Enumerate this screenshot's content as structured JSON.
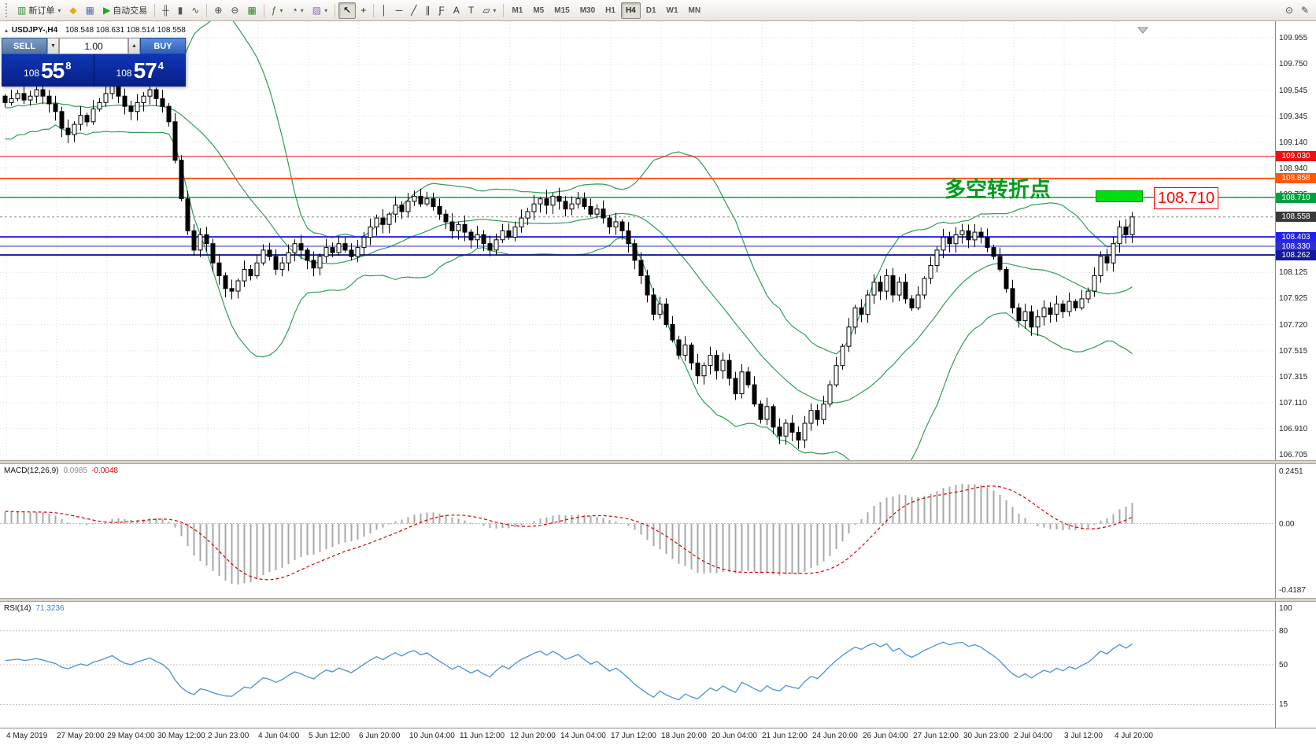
{
  "toolbar": {
    "groups": [
      {
        "name": "trade",
        "items": [
          {
            "name": "new-order-button",
            "icon": "chart-plus-icon",
            "glyph": "▥",
            "color": "#3c8c3c",
            "label": "新订单",
            "caret": true
          },
          {
            "name": "metaeditor-button",
            "icon": "diamond-icon",
            "glyph": "◆",
            "color": "#e6a817"
          },
          {
            "name": "chart-profile-button",
            "icon": "screen-icon",
            "glyph": "▦",
            "color": "#4878b8"
          },
          {
            "name": "autotrading-button",
            "icon": "play-icon",
            "glyph": "▶",
            "color": "#18a818",
            "label": "自动交易"
          }
        ]
      },
      {
        "name": "chart-type",
        "items": [
          {
            "name": "bar-chart-button",
            "icon": "ohlc-bars-icon",
            "glyph": "╫",
            "color": "#555"
          },
          {
            "name": "candlestick-button",
            "icon": "candlestick-icon",
            "glyph": "▮",
            "color": "#555"
          },
          {
            "name": "line-chart-button",
            "icon": "line-chart-icon",
            "glyph": "∿",
            "color": "#555"
          }
        ]
      },
      {
        "name": "zoom",
        "items": [
          {
            "name": "zoom-in-button",
            "icon": "zoom-in-icon",
            "glyph": "⊕",
            "color": "#444"
          },
          {
            "name": "zoom-out-button",
            "icon": "zoom-out-icon",
            "glyph": "⊖",
            "color": "#444"
          },
          {
            "name": "tile-windows-button",
            "icon": "tile-grid-icon",
            "glyph": "▦",
            "color": "#2e8b2e"
          }
        ]
      },
      {
        "name": "manage",
        "items": [
          {
            "name": "indicators-button",
            "icon": "indicator-icon",
            "glyph": "ƒ",
            "color": "#2e6f2e",
            "caret": true
          },
          {
            "name": "periods-button",
            "icon": "clock-icon",
            "glyph": "◔",
            "color": "#444",
            "caret": true
          },
          {
            "name": "templates-button",
            "icon": "picture-icon",
            "glyph": "▨",
            "color": "#8a6ab0",
            "caret": true
          }
        ]
      },
      {
        "name": "cursor",
        "items": [
          {
            "name": "cursor-button",
            "icon": "arrow-cursor-icon",
            "glyph": "↖",
            "color": "#222",
            "active": true
          },
          {
            "name": "crosshair-button",
            "icon": "crosshair-icon",
            "glyph": "+",
            "color": "#222"
          }
        ]
      },
      {
        "name": "objects",
        "items": [
          {
            "name": "vertical-line-button",
            "icon": "vline-icon",
            "glyph": "│",
            "color": "#333"
          },
          {
            "name": "horizontal-line-button",
            "icon": "hline-icon",
            "glyph": "─",
            "color": "#333"
          },
          {
            "name": "trendline-button",
            "icon": "trendline-icon",
            "glyph": "╱",
            "color": "#333"
          },
          {
            "name": "channel-button",
            "icon": "channel-icon",
            "glyph": "∥",
            "color": "#333"
          },
          {
            "name": "fibonacci-button",
            "icon": "fibonacci-icon",
            "glyph": "Ƒ",
            "color": "#333"
          },
          {
            "name": "text-button",
            "icon": "text-icon",
            "glyph": "A",
            "color": "#333"
          },
          {
            "name": "text-label-button",
            "icon": "text-label-icon",
            "glyph": "T",
            "color": "#333"
          },
          {
            "name": "shapes-button",
            "icon": "shapes-icon",
            "glyph": "▱",
            "color": "#333",
            "caret": true
          }
        ]
      }
    ],
    "timeframes": {
      "items": [
        "M1",
        "M5",
        "M15",
        "M30",
        "H1",
        "H4",
        "D1",
        "W1",
        "MN"
      ],
      "active": "H4"
    },
    "right_items": [
      {
        "name": "data-window-button",
        "icon": "magnifier-doc-icon",
        "glyph": "⊙",
        "color": "#444"
      },
      {
        "name": "quick-edit-button",
        "icon": "pencil-icon",
        "glyph": "✎",
        "color": "#444"
      }
    ]
  },
  "one_click": {
    "sell_label": "SELL",
    "buy_label": "BUY",
    "volume": "1.00",
    "sell_price": {
      "pre": "108",
      "big": "55",
      "sup": "8"
    },
    "buy_price": {
      "pre": "108",
      "big": "57",
      "sup": "4"
    }
  },
  "chart": {
    "symbol_title": "USDJPY-,H4",
    "ohlc_text": "108.548 108.631 108.514 108.558",
    "annotation": {
      "text": "多空转折点",
      "price_label": "108.710"
    },
    "current": {
      "price": 108.558,
      "label": "108.558",
      "tag_color": "#3a3a3a"
    },
    "levels": [
      {
        "price": 109.03,
        "label": "109.030",
        "color": "#e81212",
        "width": 1,
        "tag_color": "#e81212"
      },
      {
        "price": 108.858,
        "label": "108.858",
        "color": "#ff5a00",
        "width": 2,
        "tag_color": "#ff5a00"
      },
      {
        "price": 108.71,
        "label": "108.710",
        "color": "#00a341",
        "width": 1.5,
        "tag_color": "#00a341"
      },
      {
        "price": 108.403,
        "label": "108.403",
        "color": "#2222ee",
        "width": 2,
        "tag_color": "#2222ee"
      },
      {
        "price": 108.33,
        "label": "108.330",
        "color": "#2f2fd0",
        "width": 1,
        "tag_color": "#2f2fd0"
      },
      {
        "price": 108.262,
        "label": "108.262",
        "color": "#141a9e",
        "width": 2,
        "tag_color": "#141a9e"
      }
    ],
    "price_axis": {
      "min": 106.705,
      "max": 109.955,
      "ticks": [
        109.955,
        109.75,
        109.545,
        109.345,
        109.14,
        108.94,
        108.735,
        108.125,
        107.925,
        107.72,
        107.515,
        107.315,
        107.11,
        106.91,
        106.705
      ]
    },
    "time_axis": [
      "4 May 2019",
      "27 May 20:00",
      "29 May 04:00",
      "30 May 12:00",
      "2 Jun 23:00",
      "4 Jun 04:00",
      "5 Jun 12:00",
      "6 Jun 20:00",
      "10 Jun 04:00",
      "11 Jun 12:00",
      "12 Jun 20:00",
      "14 Jun 04:00",
      "17 Jun 12:00",
      "18 Jun 20:00",
      "20 Jun 04:00",
      "21 Jun 12:00",
      "24 Jun 20:00",
      "26 Jun 04:00",
      "27 Jun 12:00",
      "30 Jun 23:00",
      "2 Jul 04:00",
      "3 Jul 12:00",
      "4 Jul 20:00"
    ]
  },
  "chart_data": {
    "type": "candlestick",
    "symbol": "USDJPY-",
    "timeframe": "H4",
    "price_range": [
      106.705,
      109.955
    ],
    "indicators": {
      "bollinger": "20,2",
      "macd": "12,26,9",
      "rsi": "14"
    },
    "pre": [
      109.1,
      109.45,
      109.2,
      109.55,
      109.25,
      109.5,
      109.3,
      109.58,
      109.22,
      109.48,
      109.28,
      109.55,
      109.32,
      109.52,
      109.26,
      109.5,
      109.35,
      109.55,
      109.4,
      109.48
    ],
    "closes": [
      109.45,
      109.48,
      109.52,
      109.47,
      109.5,
      109.55,
      109.5,
      109.44,
      109.38,
      109.25,
      109.2,
      109.28,
      109.35,
      109.3,
      109.4,
      109.45,
      109.52,
      109.6,
      109.5,
      109.42,
      109.38,
      109.45,
      109.5,
      109.55,
      109.48,
      109.42,
      109.3,
      109.0,
      108.7,
      108.45,
      108.3,
      108.42,
      108.35,
      108.2,
      108.1,
      108.0,
      107.98,
      108.06,
      108.15,
      108.1,
      108.2,
      108.3,
      108.25,
      108.15,
      108.2,
      108.28,
      108.35,
      108.3,
      108.22,
      108.16,
      108.25,
      108.32,
      108.28,
      108.35,
      108.3,
      108.25,
      108.32,
      108.4,
      108.48,
      108.55,
      108.5,
      108.58,
      108.65,
      108.6,
      108.68,
      108.72,
      108.66,
      108.7,
      108.64,
      108.58,
      108.52,
      108.45,
      108.5,
      108.44,
      108.38,
      108.42,
      108.35,
      108.3,
      108.38,
      108.45,
      108.4,
      108.48,
      108.55,
      108.6,
      108.66,
      108.7,
      108.65,
      108.72,
      108.68,
      108.62,
      108.66,
      108.7,
      108.64,
      108.58,
      108.62,
      108.55,
      108.48,
      108.52,
      108.45,
      108.35,
      108.22,
      108.1,
      107.95,
      107.8,
      107.88,
      107.72,
      107.6,
      107.48,
      107.56,
      107.42,
      107.32,
      107.4,
      107.48,
      107.36,
      107.44,
      107.3,
      107.18,
      107.35,
      107.25,
      107.1,
      106.98,
      107.08,
      106.92,
      106.85,
      106.95,
      106.88,
      106.82,
      106.95,
      107.05,
      106.98,
      107.1,
      107.25,
      107.4,
      107.55,
      107.7,
      107.85,
      107.8,
      107.95,
      108.05,
      107.98,
      108.1,
      107.95,
      108.05,
      107.92,
      107.85,
      107.95,
      108.08,
      108.18,
      108.3,
      108.4,
      108.35,
      108.42,
      108.45,
      108.38,
      108.44,
      108.4,
      108.32,
      108.25,
      108.15,
      108.0,
      107.85,
      107.75,
      107.82,
      107.7,
      107.78,
      107.85,
      107.8,
      107.88,
      107.82,
      107.9,
      107.85,
      107.92,
      107.98,
      108.1,
      108.25,
      108.2,
      108.35,
      108.48,
      108.42,
      108.558
    ]
  },
  "macd_panel": {
    "label": "MACD(12,26,9)",
    "main_value": "0.0985",
    "signal_value": "-0.0048",
    "axis_top": "0.2451",
    "axis_zero": "0.00",
    "axis_bottom": "-0.4187"
  },
  "rsi_panel": {
    "label": "RSI(14)",
    "value": "71.3236",
    "axis": [
      100,
      80,
      50,
      15
    ],
    "level_lines": [
      80,
      50,
      15
    ]
  },
  "colors": {
    "grid": "#dcdcdc",
    "candle_up_fill": "#ffffff",
    "candle_down_fill": "#000000",
    "candle_stroke": "#000000",
    "bollinger": "#2e9e57",
    "macd_hist": "#a8a8a8",
    "macd_signal": "#d40000",
    "rsi_line": "#4a90d9",
    "current_line": "#888888"
  }
}
